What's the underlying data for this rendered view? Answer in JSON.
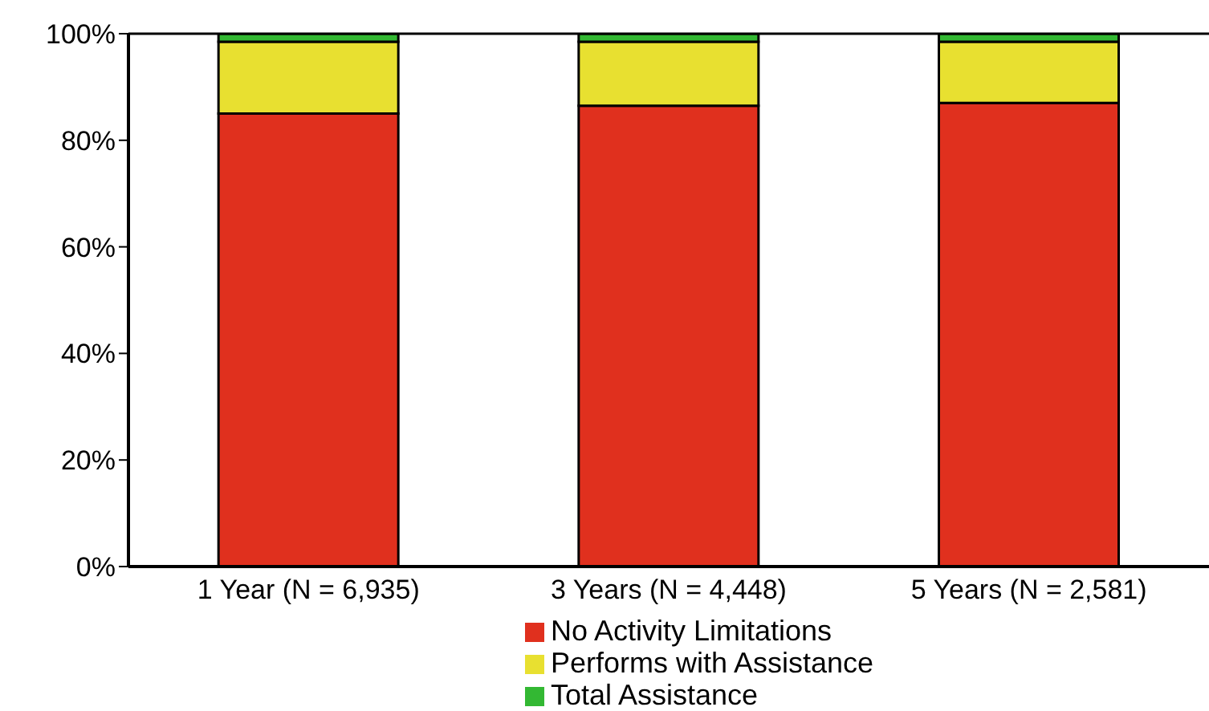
{
  "chart_data": {
    "type": "bar",
    "stacked": true,
    "categories": [
      "1 Year (N = 6,935)",
      "3 Years (N = 4,448)",
      "5 Years (N = 2,581)"
    ],
    "series": [
      {
        "name": "No Activity Limitations",
        "color": "#e0301e",
        "values": [
          85,
          86.5,
          87
        ]
      },
      {
        "name": "Performs with Assistance",
        "color": "#e8e030",
        "values": [
          13.5,
          12,
          11.5
        ]
      },
      {
        "name": "Total Assistance",
        "color": "#33b833",
        "values": [
          1.5,
          1.5,
          1.5
        ]
      }
    ],
    "ylim": [
      0,
      100
    ],
    "yticks": [
      {
        "value": 0,
        "label": "0%"
      },
      {
        "value": 20,
        "label": "20%"
      },
      {
        "value": 40,
        "label": "40%"
      },
      {
        "value": 60,
        "label": "60%"
      },
      {
        "value": 80,
        "label": "80%"
      },
      {
        "value": 100,
        "label": "100%"
      }
    ],
    "legend": "bottom",
    "grid": false
  }
}
